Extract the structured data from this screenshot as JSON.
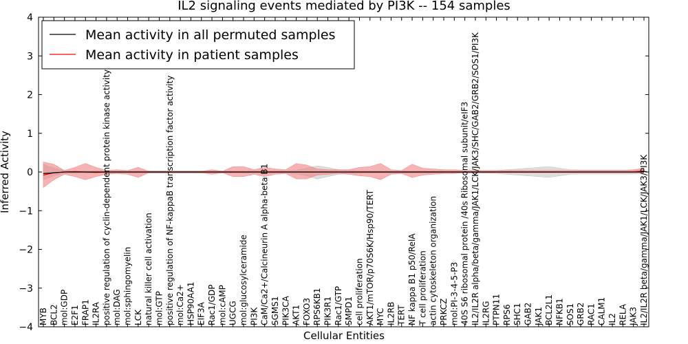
{
  "chart_data": {
    "type": "line",
    "title": "IL2 signaling events mediated by PI3K -- 154 samples",
    "xlabel": "Cellular Entities",
    "ylabel": "Inferred Activity",
    "ylim": [
      -4,
      4
    ],
    "yticks": [
      -4,
      -3,
      -2,
      -1,
      0,
      1,
      2,
      3,
      4
    ],
    "ytick_labels": [
      "−4",
      "−3",
      "−2",
      "−1",
      "0",
      "1",
      "2",
      "3",
      "4"
    ],
    "legend_position": "top-left",
    "colors": {
      "permuted": "#000000",
      "patient": "#ff0000",
      "patient_band": "#f08080",
      "permuted_band": "#bbbbbb"
    },
    "categories": [
      "MYB",
      "BCL2",
      "mol:GDP",
      "E2F1",
      "FRAP1",
      "IL2RA",
      "positive regulation of cyclin-dependent protein kinase activity",
      "mol:DAG",
      "mol:sphingomyelin",
      "LCK",
      "natural killer cell activation",
      "mol:GTP",
      "positive regulation of NF-kappaB transcription factor activity",
      "mol:Ca2+",
      "HSP90AA1",
      "EIF3A",
      "Rac1/GDP",
      "mol:cAMP",
      "UGCG",
      "mol:glucosylceramide",
      "PI3K",
      "CaM/Ca2+/Calcineurin A alpha-beta B1",
      "SGMS1",
      "PIK3CA",
      "AKT1",
      "FOXO3",
      "RPS6KB1",
      "PIK3R1",
      "Rac1/GTP",
      "SMPD1",
      "cell proliferation",
      "AKT1/mTOR/p70S6K/Hsp90/TERT",
      "MYC",
      "IL2RB",
      "TERT",
      "NF kappa B1 p50/RelA",
      "T cell proliferation",
      "actin cytoskeleton organization",
      "PRKCZ",
      "mol:PI-3-4-5-P3",
      "40S S6 ribosomal protein /40s Ribosomal subunit/eIF3",
      "IL2/IL2R alpha/beta/gamma/JAK1/LCK/JAK3/SHC/GAB2/GRB2/SOS1/PI3K",
      "IL2RG",
      "PTPN11",
      "RPS6",
      "SHC1",
      "GAB2",
      "JAK1",
      "BCL2L1",
      "NFKB1",
      "SOS1",
      "GRB2",
      "RAC1",
      "CALM1",
      "IL2",
      "RELA",
      "JAK3",
      "IL2/IL2R beta/gamma/JAK1/LCK/JAK3/PI3K"
    ],
    "series": [
      {
        "name": "Mean activity in all permuted samples",
        "values": [
          -0.04,
          -0.02,
          0.0,
          0.0,
          0.0,
          0.0,
          0.0,
          0.0,
          0.0,
          0.0,
          0.0,
          0.0,
          0.0,
          0.0,
          0.0,
          0.0,
          0.0,
          0.0,
          0.0,
          0.0,
          0.0,
          0.0,
          0.0,
          0.0,
          0.0,
          0.0,
          0.0,
          0.0,
          0.0,
          0.0,
          0.0,
          0.0,
          0.0,
          0.0,
          0.0,
          0.0,
          0.0,
          0.0,
          0.0,
          0.0,
          0.0,
          0.0,
          0.0,
          0.0,
          0.0,
          0.0,
          0.0,
          0.0,
          0.0,
          0.0,
          0.0,
          0.0,
          0.0,
          0.0,
          0.0,
          0.0,
          0.0,
          0.0
        ],
        "band_low": [
          -0.2,
          -0.1,
          -0.04,
          -0.03,
          -0.03,
          -0.03,
          -0.03,
          -0.03,
          -0.03,
          -0.03,
          -0.03,
          -0.03,
          -0.03,
          -0.03,
          -0.03,
          -0.03,
          -0.03,
          -0.03,
          -0.03,
          -0.03,
          -0.03,
          -0.03,
          -0.03,
          -0.03,
          -0.05,
          -0.1,
          -0.18,
          -0.12,
          -0.06,
          -0.04,
          -0.03,
          -0.03,
          -0.03,
          -0.03,
          -0.03,
          -0.03,
          -0.03,
          -0.03,
          -0.03,
          -0.03,
          -0.03,
          -0.03,
          -0.03,
          -0.04,
          -0.06,
          -0.08,
          -0.1,
          -0.12,
          -0.14,
          -0.1,
          -0.06,
          -0.05,
          -0.05,
          -0.05,
          -0.05,
          -0.05,
          -0.05,
          -0.04
        ],
        "band_high": [
          0.2,
          0.1,
          0.04,
          0.03,
          0.03,
          0.03,
          0.03,
          0.03,
          0.03,
          0.03,
          0.03,
          0.03,
          0.03,
          0.03,
          0.03,
          0.03,
          0.03,
          0.03,
          0.03,
          0.03,
          0.03,
          0.03,
          0.03,
          0.03,
          0.05,
          0.1,
          0.16,
          0.12,
          0.06,
          0.04,
          0.03,
          0.03,
          0.03,
          0.03,
          0.03,
          0.03,
          0.03,
          0.03,
          0.03,
          0.03,
          0.03,
          0.03,
          0.03,
          0.04,
          0.06,
          0.08,
          0.1,
          0.12,
          0.14,
          0.1,
          0.06,
          0.05,
          0.05,
          0.05,
          0.05,
          0.05,
          0.05,
          0.04
        ]
      },
      {
        "name": "Mean activity in patient samples",
        "values": [
          -0.08,
          -0.02,
          0.0,
          0.01,
          0.0,
          -0.01,
          0.0,
          0.0,
          0.0,
          0.0,
          0.0,
          0.0,
          0.0,
          0.0,
          0.0,
          0.0,
          0.0,
          0.0,
          0.0,
          0.0,
          0.0,
          0.0,
          0.0,
          0.0,
          0.0,
          0.0,
          0.0,
          0.0,
          0.0,
          0.0,
          0.0,
          0.0,
          0.0,
          0.0,
          0.0,
          0.0,
          0.0,
          0.0,
          0.0,
          0.0,
          0.0,
          0.0,
          0.0,
          0.0,
          0.0,
          0.0,
          0.0,
          0.0,
          0.0,
          0.0,
          0.0,
          0.0,
          0.0,
          0.0,
          0.0,
          0.0,
          0.0,
          0.03
        ],
        "band_low": [
          -0.4,
          -0.2,
          -0.06,
          -0.12,
          -0.2,
          -0.12,
          -0.06,
          -0.04,
          -0.06,
          -0.14,
          -0.02,
          -0.02,
          -0.02,
          -0.02,
          -0.02,
          -0.02,
          -0.06,
          -0.02,
          -0.12,
          -0.12,
          -0.06,
          -0.12,
          -0.06,
          -0.04,
          -0.18,
          -0.18,
          -0.08,
          -0.06,
          -0.04,
          -0.06,
          -0.1,
          -0.12,
          -0.2,
          -0.06,
          -0.04,
          -0.14,
          -0.08,
          -0.06,
          -0.04,
          -0.04,
          -0.02,
          -0.02,
          -0.02,
          -0.02,
          -0.02,
          -0.02,
          -0.02,
          -0.02,
          -0.02,
          -0.02,
          -0.02,
          -0.02,
          -0.02,
          -0.02,
          -0.02,
          -0.02,
          -0.02,
          -0.02
        ],
        "band_high": [
          0.26,
          0.2,
          0.04,
          0.12,
          0.22,
          0.12,
          0.04,
          0.06,
          0.04,
          0.12,
          0.02,
          0.02,
          0.02,
          0.02,
          0.02,
          0.02,
          0.06,
          0.02,
          0.14,
          0.14,
          0.06,
          0.12,
          0.08,
          0.06,
          0.22,
          0.18,
          0.08,
          0.06,
          0.06,
          0.06,
          0.12,
          0.14,
          0.22,
          0.06,
          0.04,
          0.2,
          0.1,
          0.08,
          0.06,
          0.06,
          0.04,
          0.04,
          0.04,
          0.04,
          0.04,
          0.04,
          0.04,
          0.04,
          0.04,
          0.04,
          0.04,
          0.04,
          0.04,
          0.04,
          0.04,
          0.04,
          0.06,
          0.1
        ]
      }
    ]
  }
}
